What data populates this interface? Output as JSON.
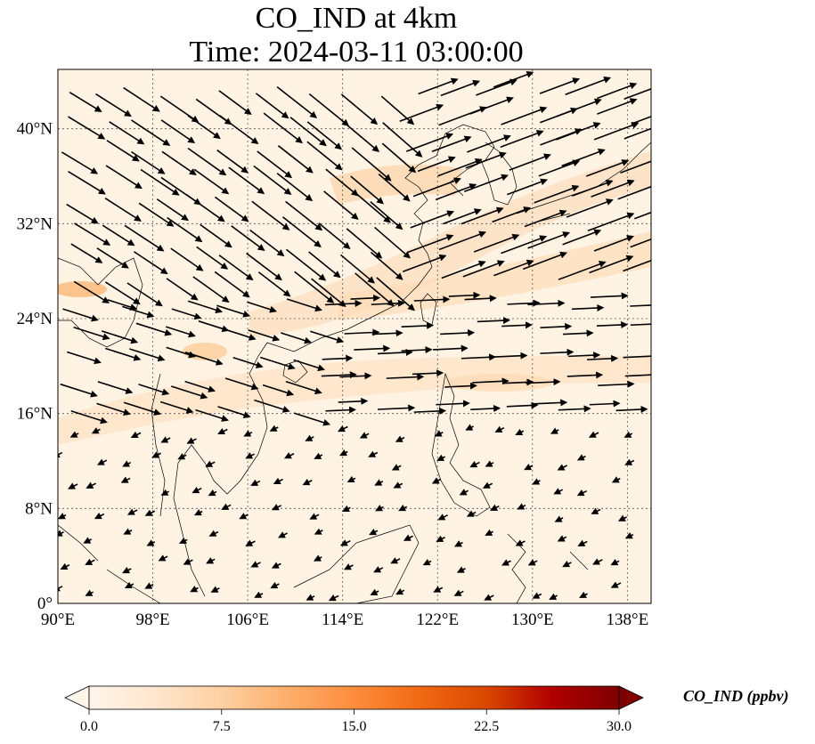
{
  "title": {
    "line1": "CO_IND at 4km",
    "line2": "Time: 2024-03-11 03:00:00"
  },
  "map": {
    "lon_range": [
      90,
      140
    ],
    "lat_range": [
      0,
      45
    ],
    "lon_ticks": [
      {
        "value": 90,
        "label": "90°E"
      },
      {
        "value": 98,
        "label": "98°E"
      },
      {
        "value": 106,
        "label": "106°E"
      },
      {
        "value": 114,
        "label": "114°E"
      },
      {
        "value": 122,
        "label": "122°E"
      },
      {
        "value": 130,
        "label": "130°E"
      },
      {
        "value": 138,
        "label": "138°E"
      }
    ],
    "lat_ticks": [
      {
        "value": 0,
        "label": "0°"
      },
      {
        "value": 8,
        "label": "8°N"
      },
      {
        "value": 16,
        "label": "16°N"
      },
      {
        "value": 24,
        "label": "24°N"
      },
      {
        "value": 32,
        "label": "32°N"
      },
      {
        "value": 40,
        "label": "40°N"
      }
    ],
    "gridlines": true,
    "field_colors": {
      "low": "#fff5eb",
      "mid": "#fdd9b0",
      "high": "#fdb97d"
    }
  },
  "colorbar": {
    "label": "CO_IND (ppbv)",
    "min": 0,
    "max": 30,
    "ticks": [
      "0.0",
      "7.5",
      "15.0",
      "22.5",
      "30.0"
    ],
    "colormap": "Oranges",
    "extend": "both",
    "stops": [
      "#fff5eb",
      "#fee6ce",
      "#fdd0a2",
      "#fdae6b",
      "#fd8d3c",
      "#f16913",
      "#d94801",
      "#b00000",
      "#7f0000"
    ]
  }
}
